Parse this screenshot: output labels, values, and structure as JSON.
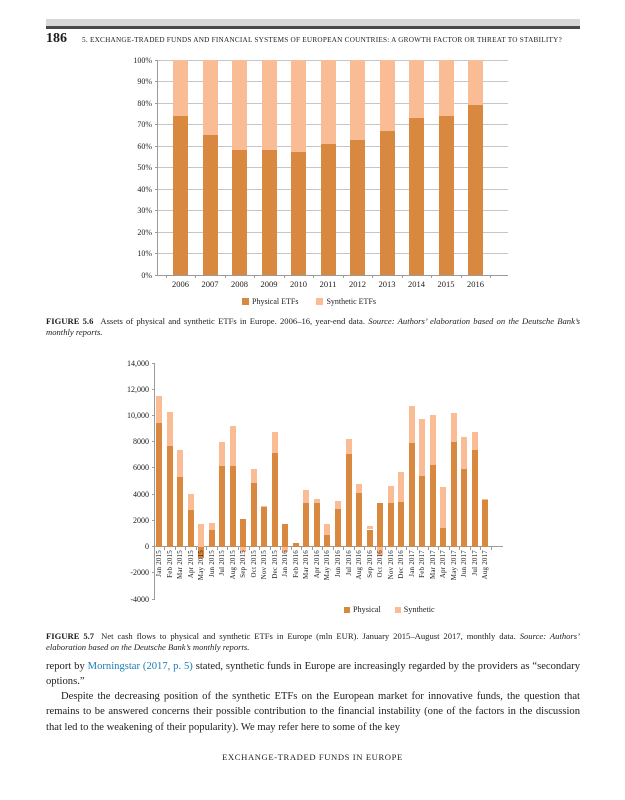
{
  "page": {
    "page_number": "186",
    "running_head": "5. EXCHANGE-TRADED FUNDS AND FINANCIAL SYSTEMS OF EUROPEAN COUNTRIES: A GROWTH FACTOR OR THREAT TO STABILITY?",
    "footer": "EXCHANGE-TRADED FUNDS IN EUROPE"
  },
  "figure_5_6": {
    "label": "FIGURE 5.6",
    "caption": "Assets of physical and synthetic ETFs in Europe. 2006–16, year-end data.",
    "source": "Source: Authors’ elaboration based on the Deutsche Bank’s monthly reports."
  },
  "figure_5_7": {
    "label": "FIGURE 5.7",
    "caption": "Net cash flows to physical and synthetic ETFs in Europe (mln EUR). January 2015–August 2017, monthly data.",
    "source": "Source: Authors’ elaboration based on the Deutsche Bank’s monthly reports."
  },
  "body": {
    "para1_pre": "report by ",
    "para1_link": "Morningstar (2017, p. 5)",
    "para1_post": " stated, synthetic funds in Europe are increasingly regarded by the providers as “secondary options.”",
    "para2": "Despite the decreasing position of the synthetic ETFs on the European market for innovative funds, the question that remains to be answered concerns their possible contribution to the financial instability (one of the factors in the discussion that led to the weakening of their popularity). We may refer here to some of the key"
  },
  "colors": {
    "physical": "#d9883f",
    "synthetic": "#f9bc94",
    "gridline": "#c6c6c6",
    "axis": "#9b9b9b",
    "link": "#1b7cb3"
  },
  "chart_data": [
    {
      "type": "bar",
      "stacked": true,
      "percent": true,
      "title": "",
      "xlabel": "",
      "ylabel": "",
      "categories": [
        "2006",
        "2007",
        "2008",
        "2009",
        "2010",
        "2011",
        "2012",
        "2013",
        "2014",
        "2015",
        "2016"
      ],
      "series": [
        {
          "name": "Physical ETFs",
          "color_key": "physical",
          "values": [
            74,
            65,
            58,
            58,
            57,
            61,
            63,
            67,
            73,
            74,
            79
          ]
        },
        {
          "name": "Synthetic ETFs",
          "color_key": "synthetic",
          "values": [
            26,
            35,
            42,
            42,
            43,
            39,
            37,
            33,
            27,
            26,
            21
          ]
        }
      ],
      "ylim": [
        0,
        100
      ],
      "ytick_step": 10,
      "ytick_labels": [
        "100%",
        "90%",
        "80%",
        "70%",
        "60%",
        "50%",
        "40%",
        "30%",
        "20%",
        "10%",
        "0%"
      ],
      "grid": true,
      "legend_position": "bottom-center"
    },
    {
      "type": "bar",
      "stacked": true,
      "percent": false,
      "title": "",
      "xlabel": "",
      "ylabel": "",
      "categories": [
        "Jan 2015",
        "Feb 2015",
        "Mar 2015",
        "Apr 2015",
        "May 2015",
        "Jun 2015",
        "Jul 2015",
        "Aug 2015",
        "Sep 2015",
        "Oct 2015",
        "Nov 2015",
        "Dec 2015",
        "Jan 2016",
        "Feb 2016",
        "Mar 2016",
        "Apr 2016",
        "May 2016",
        "Jun 2016",
        "Jul 2016",
        "Aug 2016",
        "Sep 2016",
        "Oct 2016",
        "Nov 2016",
        "Dec 2016",
        "Jan 2017",
        "Feb 2017",
        "Mar 2017",
        "Apr 2017",
        "May 2017",
        "Jun 2017",
        "Jul 2017",
        "Aug 2017"
      ],
      "series": [
        {
          "name": "Physical",
          "color_key": "physical",
          "values": [
            9400,
            7650,
            5300,
            2800,
            -900,
            1300,
            6150,
            6150,
            2100,
            4850,
            3000,
            7150,
            1700,
            250,
            3300,
            3350,
            900,
            2850,
            7050,
            4050,
            1300,
            3300,
            3300,
            3400,
            7900,
            5350,
            6200,
            1400,
            8000,
            5900,
            7350,
            3550
          ]
        },
        {
          "name": "Synthetic",
          "color_key": "synthetic",
          "values": [
            2100,
            2600,
            2100,
            1200,
            1750,
            500,
            1850,
            3050,
            -400,
            1100,
            100,
            1550,
            -400,
            0,
            1000,
            250,
            850,
            600,
            1150,
            750,
            300,
            -700,
            1350,
            2250,
            2850,
            4400,
            3850,
            3150,
            2150,
            2450,
            1400,
            100
          ]
        }
      ],
      "ylim": [
        -4000,
        14000
      ],
      "ytick_step": 2000,
      "ytick_labels": [
        "14,000",
        "12,000",
        "10,000",
        "8000",
        "6000",
        "4000",
        "2000",
        "0",
        "-2000",
        "-4000"
      ],
      "grid": false,
      "legend_position": "bottom-right"
    }
  ]
}
